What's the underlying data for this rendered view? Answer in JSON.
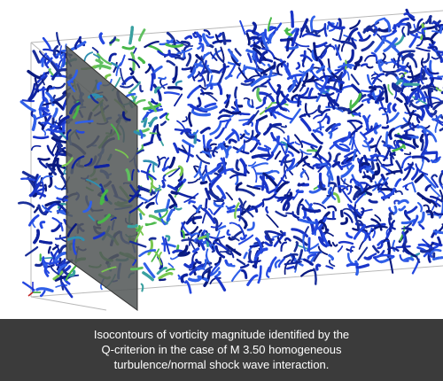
{
  "caption": {
    "lines": [
      "Isocontours of vorticity magnitude identified by the",
      "Q-criterion in the case of M 3.50 homogeneous",
      "turbulence/normal shock wave interaction."
    ]
  }
}
